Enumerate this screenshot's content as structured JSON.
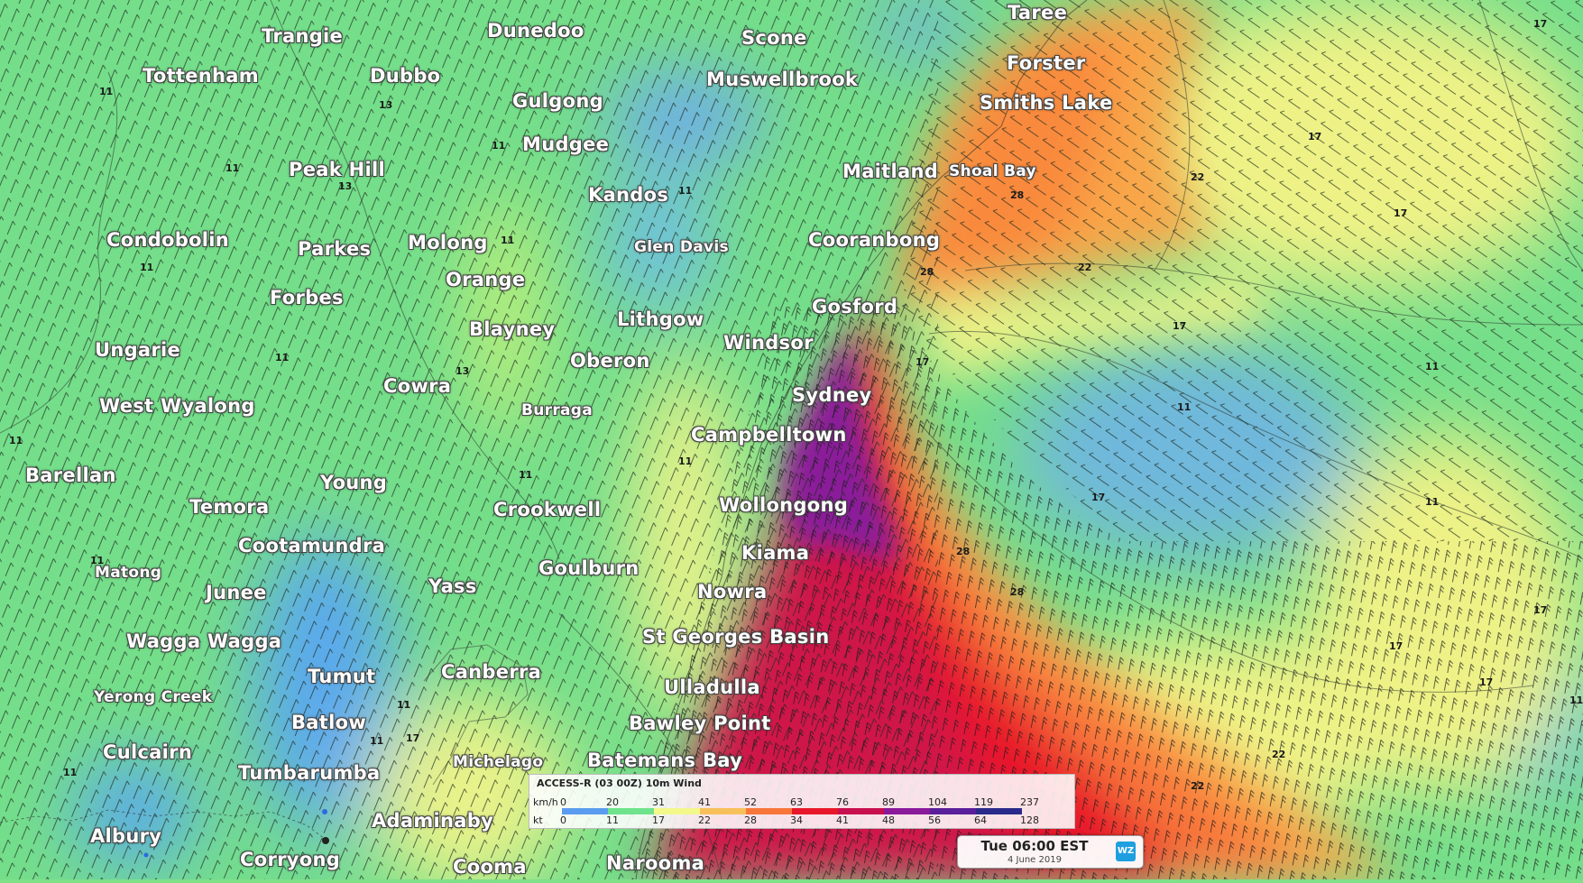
{
  "map": {
    "labels": [
      {
        "id": "taree",
        "text": "Taree",
        "size": "big"
      },
      {
        "id": "trangie",
        "text": "Trangie",
        "size": "big"
      },
      {
        "id": "dunedoo",
        "text": "Dunedoo",
        "size": "big"
      },
      {
        "id": "scone",
        "text": "Scone",
        "size": "big"
      },
      {
        "id": "forster",
        "text": "Forster",
        "size": "big"
      },
      {
        "id": "tottenham",
        "text": "Tottenham",
        "size": "big"
      },
      {
        "id": "dubbo",
        "text": "Dubbo",
        "size": "big"
      },
      {
        "id": "muswellbrook",
        "text": "Muswellbrook",
        "size": "big"
      },
      {
        "id": "gulgong",
        "text": "Gulgong",
        "size": "big"
      },
      {
        "id": "smiths-lake",
        "text": "Smiths Lake",
        "size": "big"
      },
      {
        "id": "mudgee",
        "text": "Mudgee",
        "size": "big"
      },
      {
        "id": "peak-hill",
        "text": "Peak Hill",
        "size": "big"
      },
      {
        "id": "maitland",
        "text": "Maitland",
        "size": "big"
      },
      {
        "id": "shoal-bay",
        "text": "Shoal Bay",
        "size": "small"
      },
      {
        "id": "kandos",
        "text": "Kandos",
        "size": "big"
      },
      {
        "id": "condobolin",
        "text": "Condobolin",
        "size": "big"
      },
      {
        "id": "parkes",
        "text": "Parkes",
        "size": "big"
      },
      {
        "id": "molong",
        "text": "Molong",
        "size": "big"
      },
      {
        "id": "glen-davis",
        "text": "Glen Davis",
        "size": "small"
      },
      {
        "id": "cooranbong",
        "text": "Cooranbong",
        "size": "big"
      },
      {
        "id": "orange",
        "text": "Orange",
        "size": "big"
      },
      {
        "id": "forbes",
        "text": "Forbes",
        "size": "big"
      },
      {
        "id": "gosford",
        "text": "Gosford",
        "size": "big"
      },
      {
        "id": "lithgow",
        "text": "Lithgow",
        "size": "big"
      },
      {
        "id": "blayney",
        "text": "Blayney",
        "size": "big"
      },
      {
        "id": "windsor",
        "text": "Windsor",
        "size": "big"
      },
      {
        "id": "ungarie",
        "text": "Ungarie",
        "size": "big"
      },
      {
        "id": "oberon",
        "text": "Oberon",
        "size": "big"
      },
      {
        "id": "cowra",
        "text": "Cowra",
        "size": "big"
      },
      {
        "id": "sydney",
        "text": "Sydney",
        "size": "big"
      },
      {
        "id": "west-wyalong",
        "text": "West Wyalong",
        "size": "big"
      },
      {
        "id": "burraga",
        "text": "Burraga",
        "size": "small"
      },
      {
        "id": "campbelltown",
        "text": "Campbelltown",
        "size": "big"
      },
      {
        "id": "barellan",
        "text": "Barellan",
        "size": "big"
      },
      {
        "id": "young",
        "text": "Young",
        "size": "big"
      },
      {
        "id": "temora",
        "text": "Temora",
        "size": "big"
      },
      {
        "id": "wollongong",
        "text": "Wollongong",
        "size": "big"
      },
      {
        "id": "crookwell",
        "text": "Crookwell",
        "size": "big"
      },
      {
        "id": "cootamundra",
        "text": "Cootamundra",
        "size": "big"
      },
      {
        "id": "kiama",
        "text": "Kiama",
        "size": "big"
      },
      {
        "id": "goulburn",
        "text": "Goulburn",
        "size": "big"
      },
      {
        "id": "matong",
        "text": "Matong",
        "size": "small"
      },
      {
        "id": "yass",
        "text": "Yass",
        "size": "big"
      },
      {
        "id": "junee",
        "text": "Junee",
        "size": "big"
      },
      {
        "id": "nowra",
        "text": "Nowra",
        "size": "big"
      },
      {
        "id": "st-georges-basin",
        "text": "St Georges Basin",
        "size": "big"
      },
      {
        "id": "wagga-wagga",
        "text": "Wagga Wagga",
        "size": "big"
      },
      {
        "id": "tumut",
        "text": "Tumut",
        "size": "big"
      },
      {
        "id": "canberra",
        "text": "Canberra",
        "size": "big"
      },
      {
        "id": "ulladulla",
        "text": "Ulladulla",
        "size": "big"
      },
      {
        "id": "yerong-creek",
        "text": "Yerong Creek",
        "size": "small"
      },
      {
        "id": "bawley-point",
        "text": "Bawley Point",
        "size": "big"
      },
      {
        "id": "batlow",
        "text": "Batlow",
        "size": "big"
      },
      {
        "id": "culcairn",
        "text": "Culcairn",
        "size": "big"
      },
      {
        "id": "michelago",
        "text": "Michelago",
        "size": "small"
      },
      {
        "id": "batemans-bay",
        "text": "Batemans Bay",
        "size": "big"
      },
      {
        "id": "tumbarumba",
        "text": "Tumbarumba",
        "size": "big"
      },
      {
        "id": "adaminaby",
        "text": "Adaminaby",
        "size": "big"
      },
      {
        "id": "albury",
        "text": "Albury",
        "size": "big"
      },
      {
        "id": "corryong",
        "text": "Corryong",
        "size": "big"
      },
      {
        "id": "cooma",
        "text": "Cooma",
        "size": "big"
      },
      {
        "id": "narooma",
        "text": "Narooma",
        "size": "big"
      }
    ],
    "isobar_labels": [
      "11",
      "13",
      "17",
      "22",
      "28"
    ]
  },
  "legend": {
    "title": "ACCESS-R (03 00Z) 10m Wind",
    "kmh_label": "km/h",
    "kt_label": "kt",
    "kmh_ticks": [
      "0",
      "20",
      "31",
      "41",
      "52",
      "63",
      "76",
      "89",
      "104",
      "119",
      "237"
    ],
    "kt_ticks": [
      "0",
      "11",
      "17",
      "22",
      "28",
      "34",
      "41",
      "48",
      "56",
      "64",
      "128"
    ],
    "colors": [
      "#5b9cf0",
      "#6fe48c",
      "#f4f88a",
      "#f8c05a",
      "#f8763a",
      "#e8182a",
      "#c8104e",
      "#8a1a9a",
      "#5a1f9a",
      "#2a2a8a"
    ]
  },
  "timestamp": {
    "time": "Tue 06:00 EST",
    "date": "4 June 2019",
    "logo": "WZ"
  }
}
